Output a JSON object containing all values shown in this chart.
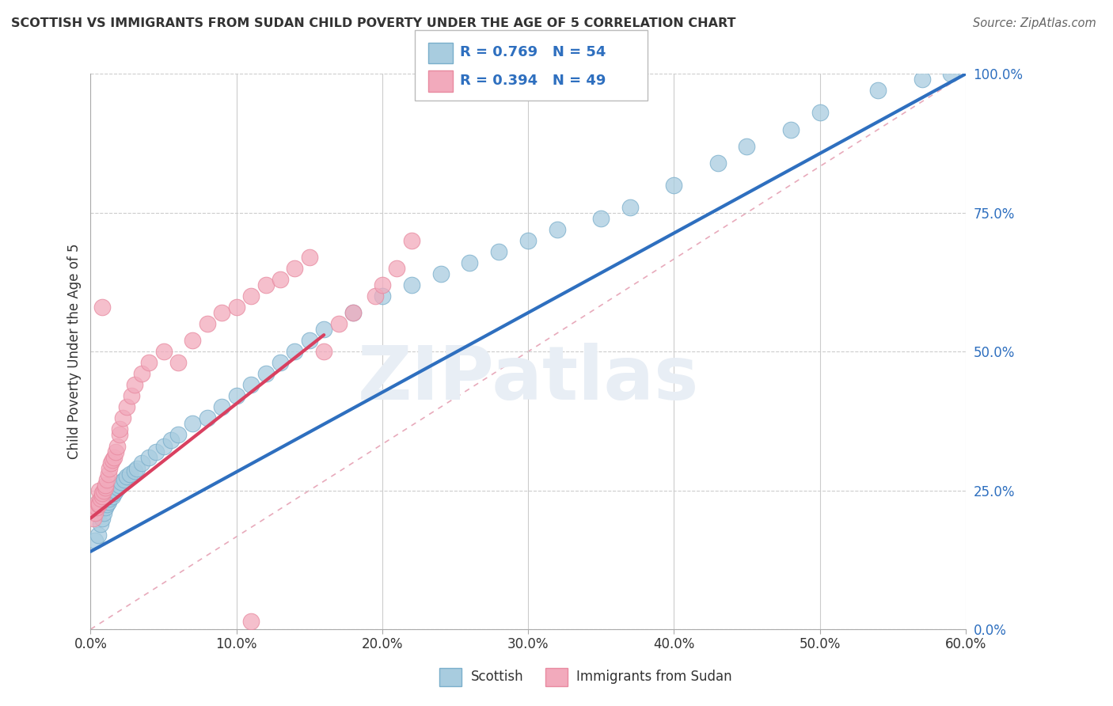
{
  "title": "SCOTTISH VS IMMIGRANTS FROM SUDAN CHILD POVERTY UNDER THE AGE OF 5 CORRELATION CHART",
  "source": "Source: ZipAtlas.com",
  "xlim": [
    0.0,
    60.0
  ],
  "ylim": [
    0.0,
    100.0
  ],
  "ylabel": "Child Poverty Under the Age of 5",
  "blue_label": "Scottish",
  "pink_label": "Immigrants from Sudan",
  "blue_R": "R = 0.769",
  "blue_N": "N = 54",
  "pink_R": "R = 0.394",
  "pink_N": "N = 49",
  "blue_color": "#A8CCDF",
  "pink_color": "#F2AABC",
  "blue_edge_color": "#7AAECB",
  "pink_edge_color": "#E88AA0",
  "blue_line_color": "#2E6FBF",
  "pink_line_color": "#D94060",
  "diag_color": "#E8AABB",
  "background_color": "#FFFFFF",
  "watermark_text": "ZIPatlas",
  "watermark_color": "#E8EEF5",
  "blue_x": [
    0.3,
    0.5,
    0.7,
    0.8,
    0.9,
    1.0,
    1.1,
    1.2,
    1.3,
    1.5,
    1.6,
    1.7,
    1.9,
    2.0,
    2.1,
    2.3,
    2.5,
    2.7,
    3.0,
    3.2,
    3.5,
    4.0,
    4.5,
    5.0,
    5.5,
    6.0,
    7.0,
    8.0,
    9.0,
    10.0,
    11.0,
    12.0,
    13.0,
    14.0,
    15.0,
    16.0,
    18.0,
    20.0,
    22.0,
    24.0,
    26.0,
    28.0,
    30.0,
    32.0,
    35.0,
    37.0,
    40.0,
    43.0,
    45.0,
    48.0,
    50.0,
    54.0,
    57.0,
    59.0
  ],
  "blue_y": [
    16.0,
    17.0,
    19.0,
    20.0,
    21.0,
    22.0,
    22.5,
    23.0,
    23.5,
    24.0,
    24.5,
    25.0,
    25.5,
    26.0,
    26.5,
    27.0,
    27.5,
    28.0,
    28.5,
    29.0,
    30.0,
    31.0,
    32.0,
    33.0,
    34.0,
    35.0,
    37.0,
    38.0,
    40.0,
    42.0,
    44.0,
    46.0,
    48.0,
    50.0,
    52.0,
    54.0,
    57.0,
    60.0,
    62.0,
    64.0,
    66.0,
    68.0,
    70.0,
    72.0,
    74.0,
    76.0,
    80.0,
    84.0,
    87.0,
    90.0,
    93.0,
    97.0,
    99.0,
    100.0
  ],
  "pink_x": [
    0.2,
    0.3,
    0.4,
    0.5,
    0.5,
    0.6,
    0.6,
    0.7,
    0.8,
    0.8,
    0.9,
    1.0,
    1.0,
    1.1,
    1.2,
    1.3,
    1.4,
    1.5,
    1.6,
    1.7,
    1.8,
    2.0,
    2.0,
    2.2,
    2.5,
    2.8,
    3.0,
    3.5,
    4.0,
    5.0,
    6.0,
    7.0,
    8.0,
    9.0,
    10.0,
    11.0,
    12.0,
    13.0,
    14.0,
    15.0,
    16.0,
    17.0,
    18.0,
    19.5,
    20.0,
    21.0,
    22.0,
    11.0,
    0.8
  ],
  "pink_y": [
    20.0,
    21.0,
    22.0,
    22.5,
    23.0,
    22.5,
    25.0,
    23.5,
    24.0,
    24.5,
    25.0,
    25.5,
    26.0,
    27.0,
    28.0,
    29.0,
    30.0,
    30.5,
    31.0,
    32.0,
    33.0,
    35.0,
    36.0,
    38.0,
    40.0,
    42.0,
    44.0,
    46.0,
    48.0,
    50.0,
    48.0,
    52.0,
    55.0,
    57.0,
    58.0,
    60.0,
    62.0,
    63.0,
    65.0,
    67.0,
    50.0,
    55.0,
    57.0,
    60.0,
    62.0,
    65.0,
    70.0,
    1.5,
    58.0
  ],
  "blue_reg_x0": 0.0,
  "blue_reg_y0": 14.0,
  "blue_reg_x1": 60.0,
  "blue_reg_y1": 100.0,
  "pink_reg_x0": 0.0,
  "pink_reg_y0": 20.0,
  "pink_reg_x1": 16.0,
  "pink_reg_y1": 53.0
}
